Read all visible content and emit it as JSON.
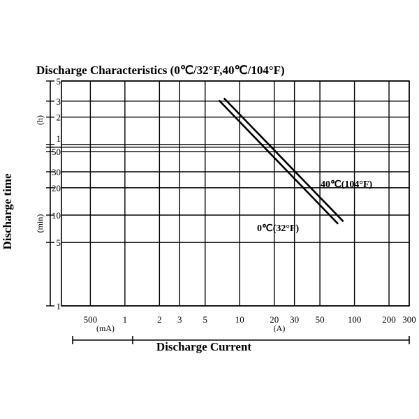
{
  "chart_data": {
    "type": "line",
    "title": "Discharge  Characteristics (0℃/32°F,40℃/104°F)",
    "xlabel": "Discharge Current",
    "ylabel": "Discharge time",
    "x_scale": "log",
    "y_scale": "log",
    "grid": true,
    "x_unit_groups": [
      {
        "unit": "(mA)",
        "ticks": [
          "500"
        ]
      },
      {
        "unit": "(A)",
        "ticks": [
          "1",
          "2",
          "3",
          "5",
          "10",
          "20",
          "30",
          "50",
          "100",
          "200",
          "300"
        ]
      }
    ],
    "y_unit_groups": [
      {
        "unit": "(h)",
        "ticks": [
          "1",
          "2",
          "3",
          "5"
        ]
      },
      {
        "unit": "(min)",
        "ticks": [
          "1",
          "5",
          "10",
          "20",
          "30",
          "50"
        ]
      }
    ],
    "xlim_A": [
      0.28,
      300
    ],
    "ylim_min": [
      1,
      300
    ],
    "series": [
      {
        "name": "0℃(32°F)",
        "points": [
          {
            "current_A": 6.6,
            "time_min": 184
          },
          {
            "current_A": 72,
            "time_min": 8
          }
        ]
      },
      {
        "name": "40℃(104°F)",
        "points": [
          {
            "current_A": 7.3,
            "time_min": 194
          },
          {
            "current_A": 80,
            "time_min": 8.5
          }
        ]
      }
    ]
  }
}
